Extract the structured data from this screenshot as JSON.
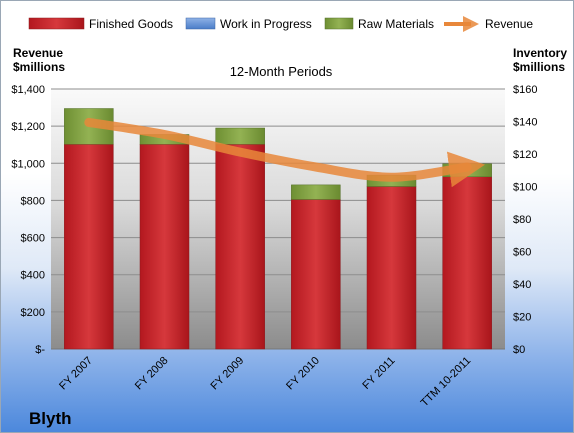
{
  "chart_data": {
    "type": "bar",
    "title": "12-Month Periods",
    "company": "Blyth",
    "categories": [
      "FY 2007",
      "FY 2008",
      "FY 2009",
      "FY 2010",
      "FY 2011",
      "TTM 10-2011"
    ],
    "series": [
      {
        "name": "Finished Goods",
        "axis": "right",
        "color": "#c0282d",
        "values": [
          126,
          126,
          126,
          92,
          100,
          106
        ]
      },
      {
        "name": "Work in Progress",
        "axis": "right",
        "color": "#5b8fd6",
        "values": [
          0,
          0,
          0,
          0,
          0,
          0
        ]
      },
      {
        "name": "Raw Materials",
        "axis": "right",
        "color": "#7f9f3e",
        "values": [
          22,
          6,
          10,
          9,
          7,
          8
        ]
      },
      {
        "name": "Revenue",
        "axis": "left",
        "type": "line",
        "color": "#e8873a",
        "values": [
          1220,
          1155,
          1060,
          980,
          925,
          980
        ]
      }
    ],
    "left_axis": {
      "title_line1": "Revenue",
      "title_line2": "$millions",
      "min": 0,
      "max": 1400,
      "ticks": [
        "$-",
        "$200",
        "$400",
        "$600",
        "$800",
        "$1,000",
        "$1,200",
        "$1,400"
      ]
    },
    "right_axis": {
      "title_line1": "Inventory",
      "title_line2": "$millions",
      "min": 0,
      "max": 160,
      "ticks": [
        "$0",
        "$20",
        "$40",
        "$60",
        "$80",
        "$100",
        "$120",
        "$140",
        "$160"
      ]
    },
    "grid": true,
    "legend": "top"
  }
}
